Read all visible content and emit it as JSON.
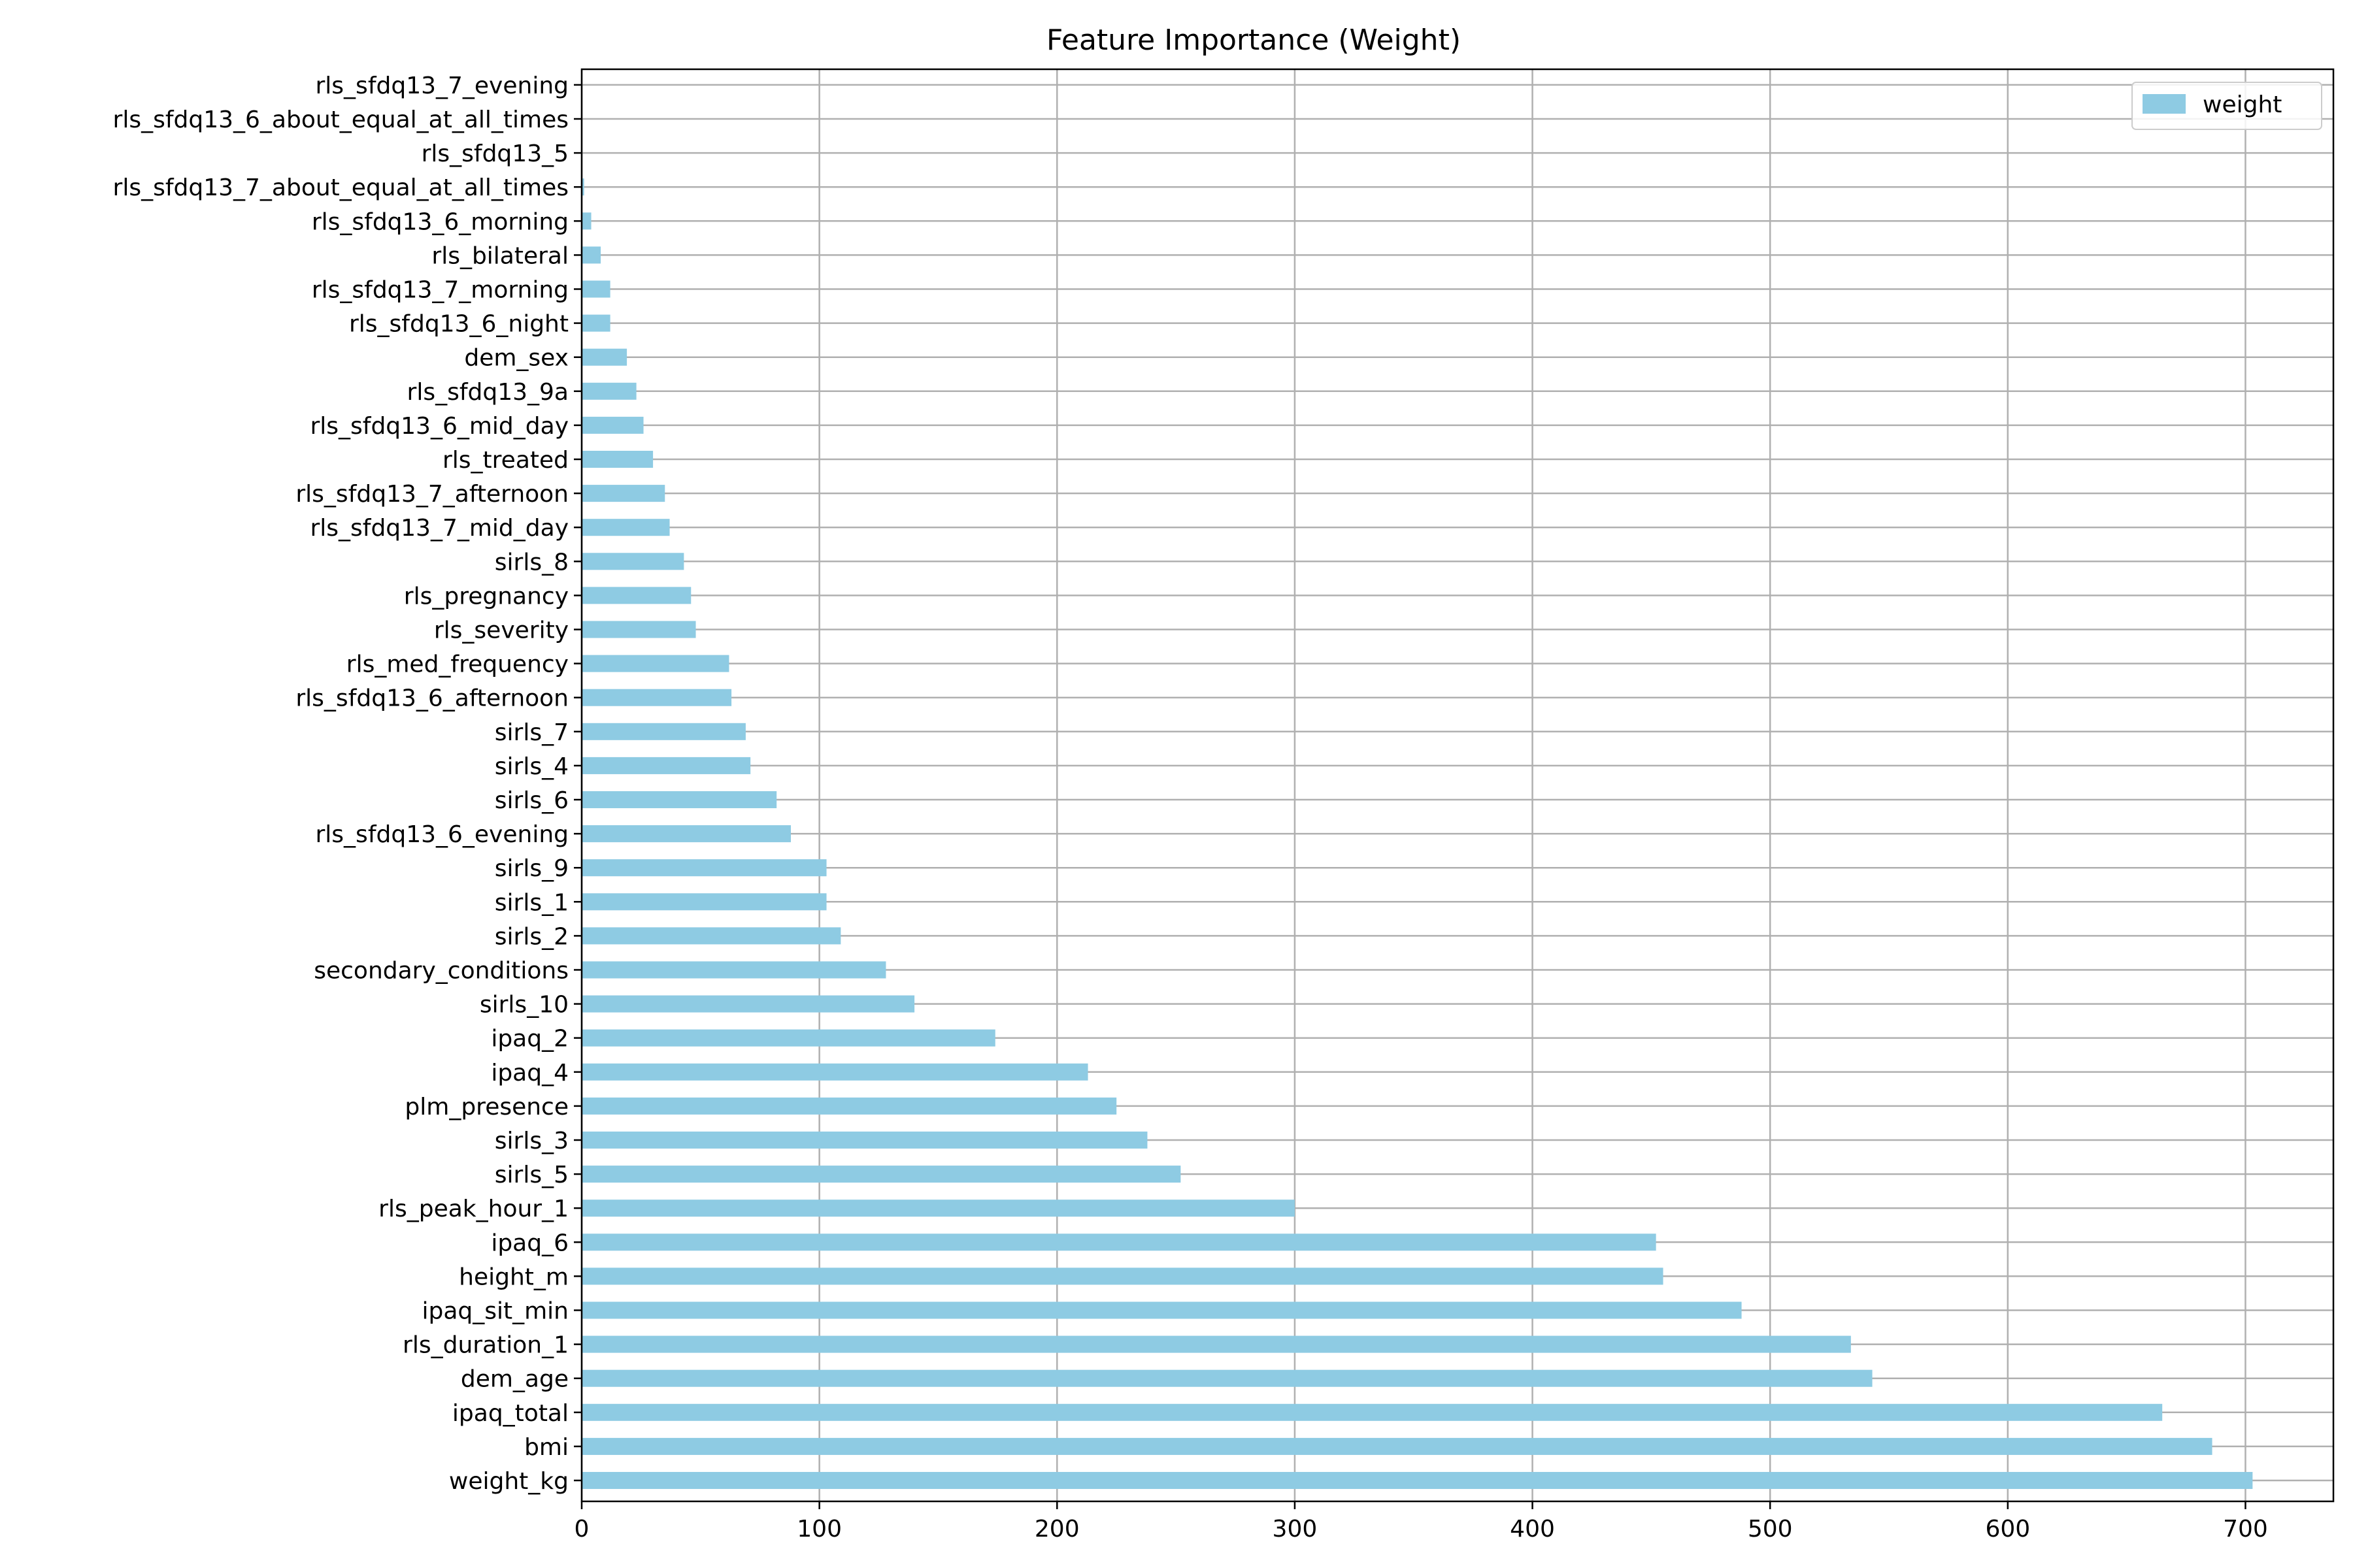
{
  "chart_data": {
    "type": "bar",
    "orientation": "horizontal",
    "title": "Feature Importance (Weight)",
    "xlabel": "",
    "ylabel": "",
    "xlim": [
      0,
      737
    ],
    "x_ticks": [
      0,
      100,
      200,
      300,
      400,
      500,
      600,
      700
    ],
    "grid": true,
    "legend": "top-right",
    "bar_color": "#8ecbe3",
    "series": [
      {
        "name": "weight",
        "categories": [
          "weight_kg",
          "bmi",
          "ipaq_total",
          "dem_age",
          "rls_duration_1",
          "ipaq_sit_min",
          "height_m",
          "ipaq_6",
          "rls_peak_hour_1",
          "sirls_5",
          "sirls_3",
          "plm_presence",
          "ipaq_4",
          "ipaq_2",
          "sirls_10",
          "secondary_conditions",
          "sirls_2",
          "sirls_1",
          "sirls_9",
          "rls_sfdq13_6_evening",
          "sirls_6",
          "sirls_4",
          "sirls_7",
          "rls_sfdq13_6_afternoon",
          "rls_med_frequency",
          "rls_severity",
          "rls_pregnancy",
          "sirls_8",
          "rls_sfdq13_7_mid_day",
          "rls_sfdq13_7_afternoon",
          "rls_treated",
          "rls_sfdq13_6_mid_day",
          "rls_sfdq13_9a",
          "dem_sex",
          "rls_sfdq13_6_night",
          "rls_sfdq13_7_morning",
          "rls_bilateral",
          "rls_sfdq13_6_morning",
          "rls_sfdq13_7_about_equal_at_all_times",
          "rls_sfdq13_5",
          "rls_sfdq13_6_about_equal_at_all_times",
          "rls_sfdq13_7_evening"
        ],
        "values": [
          703,
          686,
          665,
          543,
          534,
          488,
          455,
          452,
          300,
          252,
          238,
          225,
          213,
          174,
          140,
          128,
          109,
          103,
          103,
          88,
          82,
          71,
          69,
          63,
          62,
          48,
          46,
          43,
          37,
          35,
          30,
          26,
          23,
          19,
          12,
          12,
          8,
          4,
          1,
          0,
          0,
          0
        ]
      }
    ]
  }
}
